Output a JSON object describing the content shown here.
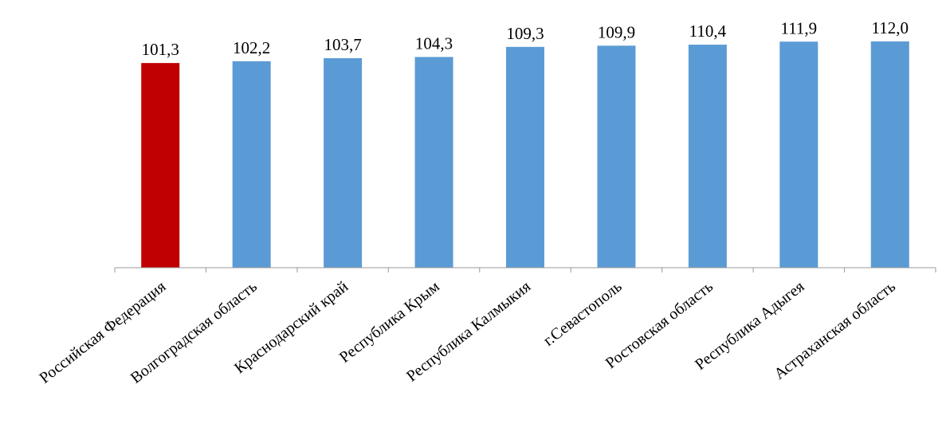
{
  "chart_data": {
    "type": "bar",
    "title": "",
    "xlabel": "",
    "ylabel": "",
    "ylim": [
      0,
      112.0
    ],
    "grid": false,
    "legend": "none",
    "categories": [
      "Российская Федерация",
      "Волгоградская область",
      "Краснодарский край",
      "Республика Крым",
      "Республика Калмыкия",
      "г.Севастополь",
      "Ростовская область",
      "Республика Адыгея",
      "Астраханская область"
    ],
    "values": [
      101.3,
      102.2,
      103.7,
      104.3,
      109.3,
      109.9,
      110.4,
      111.9,
      112.0
    ],
    "value_labels": [
      "101,3",
      "102,2",
      "103,7",
      "104,3",
      "109,3",
      "109,9",
      "110,4",
      "111,9",
      "112,0"
    ],
    "colors": [
      "#C00000",
      "#5B9BD5",
      "#5B9BD5",
      "#5B9BD5",
      "#5B9BD5",
      "#5B9BD5",
      "#5B9BD5",
      "#5B9BD5",
      "#5B9BD5"
    ]
  }
}
